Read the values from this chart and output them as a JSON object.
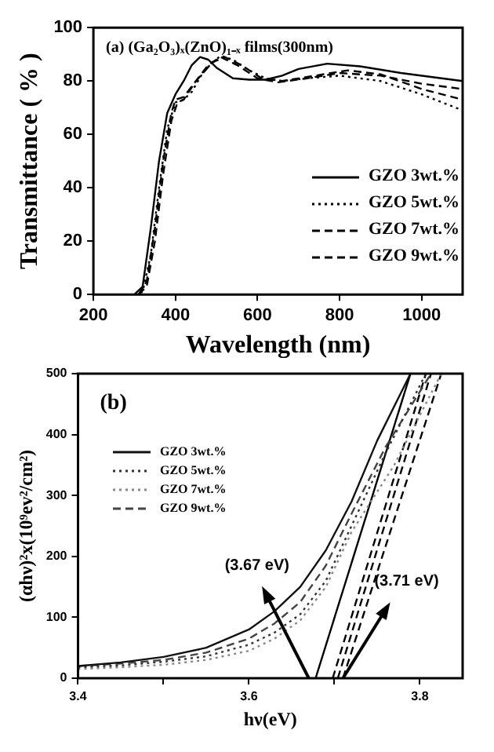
{
  "chart_data": [
    {
      "type": "line",
      "title": "(a) (Ga₂O₃)ₓ(ZnO)₁₋ₓ films(300nm)",
      "xlabel": "Wavelength (nm)",
      "ylabel": "Transmittance ( % )",
      "xlim": [
        200,
        1100
      ],
      "xticks": [
        200,
        400,
        600,
        800,
        1000
      ],
      "ylim": [
        0,
        100
      ],
      "yticks": [
        0,
        20,
        40,
        60,
        80,
        100
      ],
      "legend": "bottom right",
      "grid": false,
      "series": [
        {
          "name": "GZO 3wt.%",
          "color": "#000000",
          "line_style": "solid",
          "x": [
            300,
            320,
            340,
            360,
            380,
            400,
            420,
            440,
            460,
            480,
            500,
            540,
            580,
            620,
            660,
            700,
            770,
            850,
            950,
            1100
          ],
          "values": [
            0,
            3,
            25,
            50,
            68,
            75,
            80,
            86,
            89,
            88,
            85,
            81,
            80.5,
            80.5,
            82,
            84.5,
            86.5,
            85.5,
            83,
            80
          ]
        },
        {
          "name": "GZO 5wt.%",
          "color": "#000000",
          "line_style": "dotted",
          "x": [
            300,
            320,
            340,
            360,
            380,
            400,
            420,
            440,
            470,
            510,
            540,
            580,
            620,
            660,
            720,
            800,
            900,
            1000,
            1100
          ],
          "values": [
            0,
            1,
            15,
            40,
            62,
            72,
            73,
            76,
            84,
            89.5,
            88,
            84,
            81,
            80,
            81,
            82,
            80,
            75,
            69
          ]
        },
        {
          "name": "GZO 7wt.%",
          "color": "#000000",
          "line_style": "dashed",
          "x": [
            310,
            330,
            350,
            370,
            390,
            400,
            420,
            450,
            480,
            510,
            550,
            600,
            650,
            720,
            800,
            900,
            1000,
            1100
          ],
          "values": [
            0,
            5,
            25,
            50,
            68,
            73,
            74,
            80,
            86,
            89,
            86,
            81,
            79.5,
            81,
            83,
            82,
            79,
            77
          ]
        },
        {
          "name": "GZO 9wt.%",
          "color": "#000000",
          "line_style": "dashed",
          "x": [
            310,
            330,
            350,
            370,
            390,
            405,
            420,
            450,
            490,
            520,
            560,
            610,
            660,
            740,
            820,
            900,
            1000,
            1100
          ],
          "values": [
            0,
            3,
            20,
            45,
            65,
            72,
            73,
            80,
            87,
            89,
            86,
            81,
            80,
            82,
            84,
            82.5,
            77,
            73
          ]
        }
      ]
    },
    {
      "type": "line",
      "title": "(b)",
      "xlabel": "hν(eV)",
      "ylabel": "(αhν)²x(10⁹ev²/cm²)",
      "xlim": [
        3.4,
        3.85
      ],
      "xticks": [
        3.4,
        {
          "value": 3.5,
          "label": null
        },
        3.6,
        {
          "value": 3.7,
          "label": null
        },
        3.8
      ],
      "ylim": [
        0,
        500
      ],
      "yticks": [
        0,
        100,
        200,
        300,
        400,
        500
      ],
      "legend": "top left",
      "grid": false,
      "annotations": [
        {
          "text": "(3.67 eV)",
          "x": 3.67,
          "y": 0
        },
        {
          "text": "(3.71 eV)",
          "x": 3.71,
          "y": 0
        }
      ],
      "series": [
        {
          "name": "GZO 3wt.%",
          "color": "#111111",
          "line_style": "solid",
          "x": [
            3.4,
            3.45,
            3.5,
            3.55,
            3.6,
            3.63,
            3.66,
            3.69,
            3.72,
            3.75,
            3.789
          ],
          "values": [
            20,
            26,
            35,
            50,
            80,
            110,
            150,
            210,
            290,
            390,
            500
          ]
        },
        {
          "name": "GZO 5wt.%",
          "color": "#333333",
          "line_style": "dotted",
          "x": [
            3.4,
            3.45,
            3.5,
            3.55,
            3.6,
            3.63,
            3.66,
            3.69,
            3.72,
            3.76,
            3.807
          ],
          "values": [
            18,
            21,
            27,
            36,
            55,
            75,
            105,
            160,
            250,
            370,
            500
          ]
        },
        {
          "name": "GZO 7wt.%",
          "color": "#888888",
          "line_style": "dotted",
          "x": [
            3.4,
            3.45,
            3.5,
            3.55,
            3.6,
            3.63,
            3.66,
            3.69,
            3.72,
            3.77,
            3.825
          ],
          "values": [
            15,
            18,
            22,
            30,
            45,
            65,
            95,
            150,
            240,
            350,
            500
          ]
        },
        {
          "name": "GZO 9wt.%",
          "color": "#444444",
          "line_style": "dashed",
          "x": [
            3.4,
            3.45,
            3.5,
            3.55,
            3.6,
            3.63,
            3.66,
            3.69,
            3.72,
            3.76,
            3.813
          ],
          "values": [
            20,
            24,
            30,
            42,
            65,
            90,
            125,
            185,
            270,
            380,
            500
          ]
        },
        {
          "type": "line",
          "color": "#000000",
          "line_style": "solid",
          "x": [
            3.678,
            3.789
          ],
          "values": [
            0,
            500
          ]
        },
        {
          "type": "line",
          "color": "#000000",
          "line_style": "dashed",
          "x": [
            3.698,
            3.807
          ],
          "values": [
            0,
            500
          ]
        },
        {
          "type": "line",
          "color": "#000000",
          "line_style": "dashed",
          "x": [
            3.704,
            3.813
          ],
          "values": [
            0,
            500
          ]
        },
        {
          "type": "line",
          "color": "#000000",
          "line_style": "dashed",
          "x": [
            3.71,
            3.825
          ],
          "values": [
            0,
            500
          ]
        }
      ]
    }
  ]
}
